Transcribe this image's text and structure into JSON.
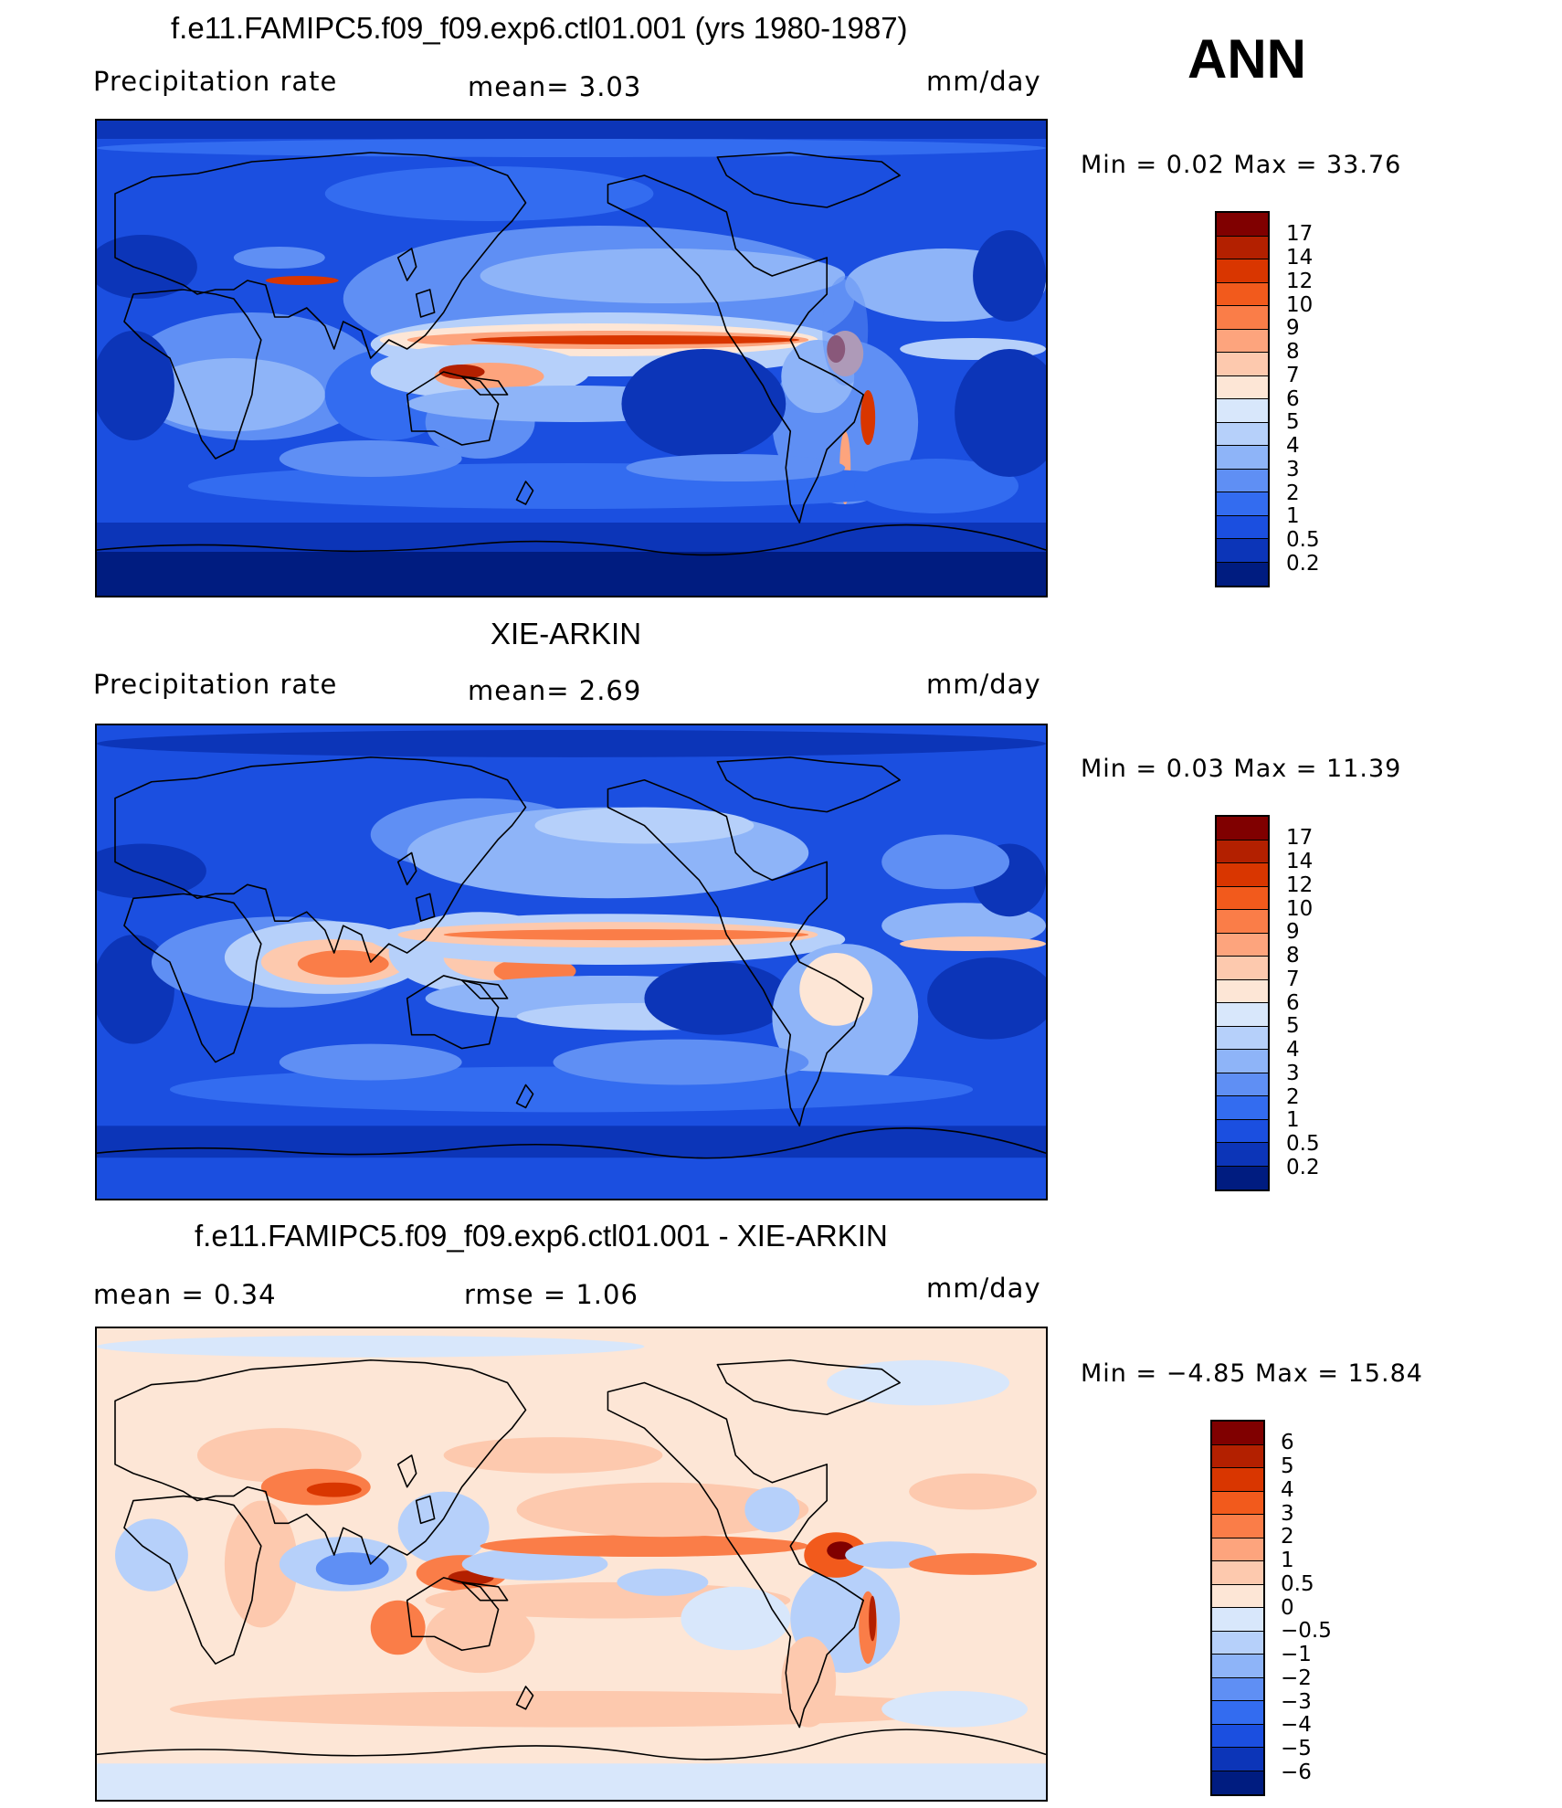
{
  "season": "ANN",
  "panels": [
    {
      "id": "model",
      "title": "f.e11.FAMIPC5.f09_f09.exp6.ctl01.001 (yrs 1980-1987)",
      "left_header": "Precipitation  rate",
      "center_header": "mean=    3.03",
      "units": "mm/day",
      "minmax": "Min  =     0.02  Max  =    33.76",
      "palette": "precip"
    },
    {
      "id": "obs",
      "title": "XIE-ARKIN",
      "left_header": "Precipitation  rate",
      "center_header": "mean=    2.69",
      "units": "mm/day",
      "minmax": "Min  =     0.03  Max  =    11.39",
      "palette": "precip"
    },
    {
      "id": "diff",
      "title": "f.e11.FAMIPC5.f09_f09.exp6.ctl01.001 - XIE-ARKIN",
      "left_header": "mean  =     0.34",
      "center_header": "rmse  =     1.06",
      "units": "mm/day",
      "minmax": "Min  =   −4.85  Max  =    15.84",
      "palette": "diff"
    }
  ],
  "colorbars": {
    "precip": {
      "labels": [
        "17",
        "14",
        "12",
        "10",
        "9",
        "8",
        "7",
        "6",
        "5",
        "4",
        "3",
        "2",
        "1",
        "0.5",
        "0.2"
      ],
      "colors": [
        "#800000",
        "#b32000",
        "#d93600",
        "#f25a1c",
        "#fa7d48",
        "#fda47d",
        "#fdc9ae",
        "#fde6d6",
        "#d8e7fb",
        "#b6d0fa",
        "#8eb4f8",
        "#5f8ff4",
        "#336cf0",
        "#1b4fe0",
        "#0c35b8",
        "#001c80"
      ]
    },
    "diff": {
      "labels": [
        "6",
        "5",
        "4",
        "3",
        "2",
        "1",
        "0.5",
        "0",
        "−0.5",
        "−1",
        "−2",
        "−3",
        "−4",
        "−5",
        "−6"
      ],
      "colors": [
        "#800000",
        "#b32000",
        "#d93600",
        "#f25a1c",
        "#fa7d48",
        "#fda47d",
        "#fdc9ae",
        "#fde6d6",
        "#d8e7fb",
        "#b6d0fa",
        "#8eb4f8",
        "#5f8ff4",
        "#336cf0",
        "#1b4fe0",
        "#0c35b8",
        "#001c80"
      ]
    }
  }
}
